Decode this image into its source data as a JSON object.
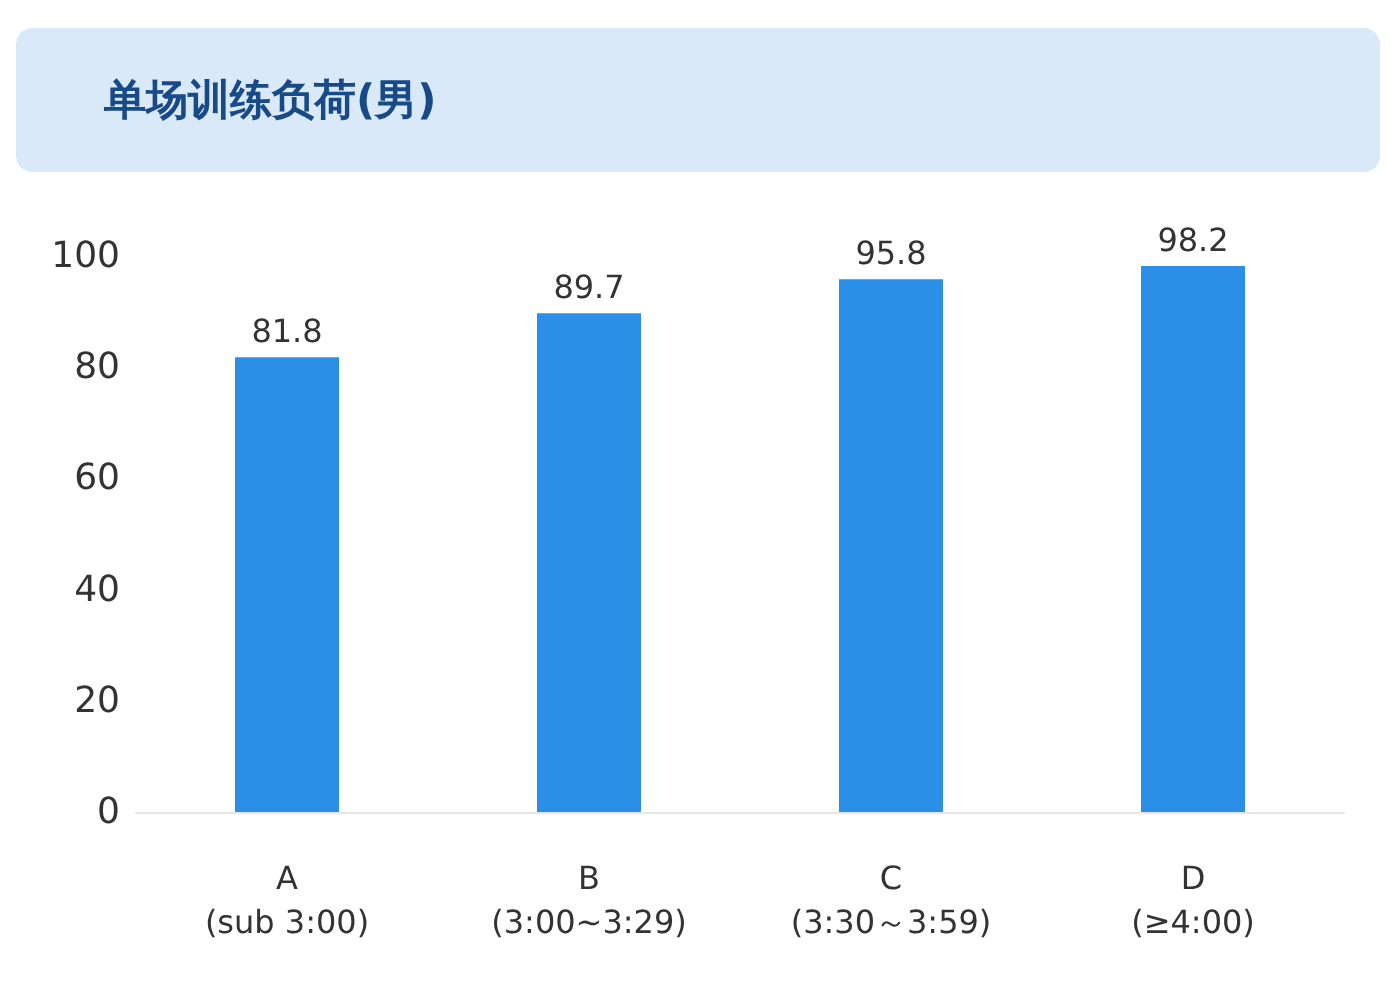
{
  "chart_data": {
    "type": "bar",
    "title": "单场训练负荷(男)",
    "categories": [
      "A\n(sub 3:00)",
      "B\n(3:00~3:29)",
      "C\n(3:30～3:59)",
      "D\n(≥4:00)"
    ],
    "values": [
      81.8,
      89.7,
      95.8,
      98.2
    ],
    "color": "#2b8fe8",
    "ylim": [
      0,
      100
    ],
    "yticks": [
      0,
      20,
      40,
      60,
      80,
      100
    ],
    "grid": false,
    "data_labels": true
  }
}
